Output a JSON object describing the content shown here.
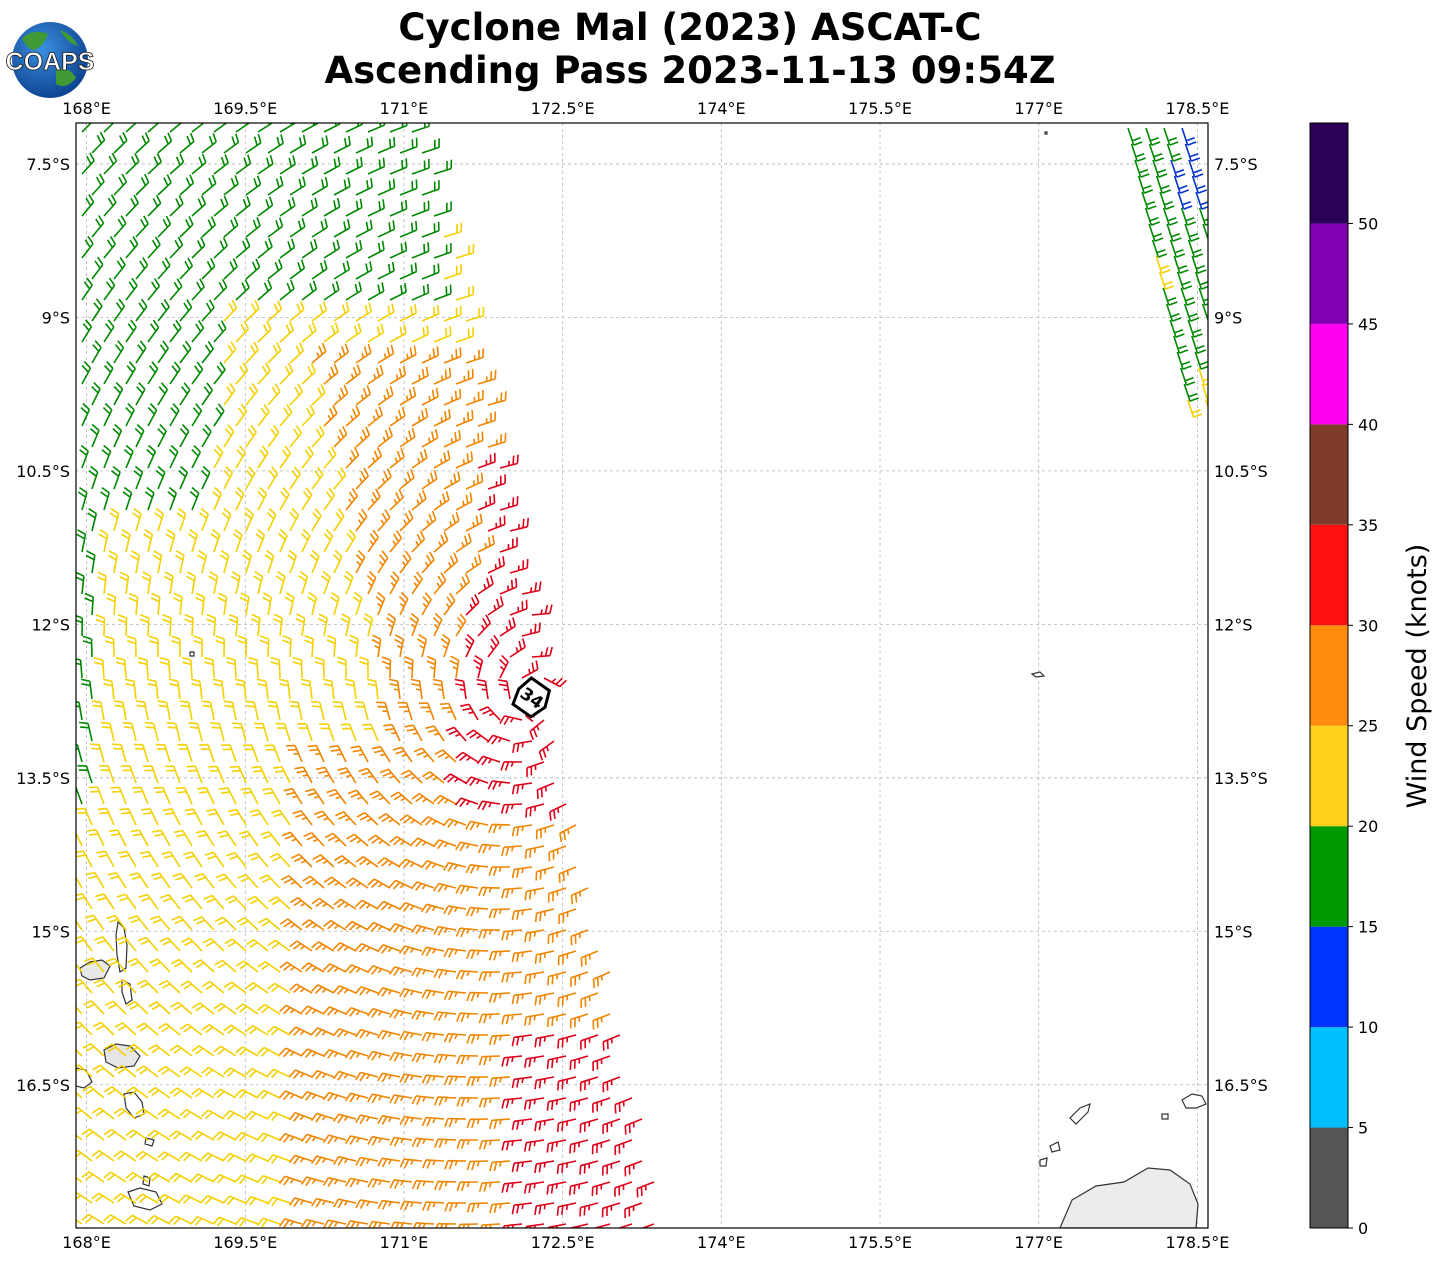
{
  "logo": {
    "text": "COAPS"
  },
  "title": {
    "line1": "Cyclone Mal (2023) ASCAT-C",
    "line2": "Ascending Pass 2023-11-13 09:54Z"
  },
  "map": {
    "lon_range": [
      167.9,
      178.6
    ],
    "lat_range": [
      -7.1,
      -17.9
    ],
    "lon_ticks": [
      {
        "value": 168.0,
        "label": "168°E"
      },
      {
        "value": 169.5,
        "label": "169.5°E"
      },
      {
        "value": 171.0,
        "label": "171°E"
      },
      {
        "value": 172.5,
        "label": "172.5°E"
      },
      {
        "value": 174.0,
        "label": "174°E"
      },
      {
        "value": 175.5,
        "label": "175.5°E"
      },
      {
        "value": 177.0,
        "label": "177°E"
      },
      {
        "value": 178.5,
        "label": "178.5°E"
      }
    ],
    "lat_ticks": [
      {
        "value": -7.5,
        "label": "7.5°S"
      },
      {
        "value": -9.0,
        "label": "9°S"
      },
      {
        "value": -10.5,
        "label": "10.5°S"
      },
      {
        "value": -12.0,
        "label": "12°S"
      },
      {
        "value": -13.5,
        "label": "13.5°S"
      },
      {
        "value": -15.0,
        "label": "15°S"
      },
      {
        "value": -16.5,
        "label": "16.5°S"
      }
    ],
    "gridlines": true,
    "storm_marker": {
      "label": "34",
      "lon": 172.15,
      "lat": -12.65
    }
  },
  "colorbar": {
    "label": "Wind Speed (knots)",
    "bins": [
      {
        "min": 0,
        "max": 5,
        "color": "#555555"
      },
      {
        "min": 5,
        "max": 10,
        "color": "#00bfff"
      },
      {
        "min": 10,
        "max": 15,
        "color": "#0033ff"
      },
      {
        "min": 15,
        "max": 20,
        "color": "#009900"
      },
      {
        "min": 20,
        "max": 25,
        "color": "#ffd11a"
      },
      {
        "min": 25,
        "max": 30,
        "color": "#ff8c0d"
      },
      {
        "min": 30,
        "max": 35,
        "color": "#ff1111"
      },
      {
        "min": 35,
        "max": 40,
        "color": "#803c2a"
      },
      {
        "min": 40,
        "max": 45,
        "color": "#ff00ee"
      },
      {
        "min": 45,
        "max": 50,
        "color": "#8000b3"
      },
      {
        "min": 50,
        "max": 55,
        "color": "#2b0057"
      }
    ],
    "ticks": [
      "0",
      "5",
      "10",
      "15",
      "20",
      "25",
      "30",
      "35",
      "40",
      "45",
      "50"
    ]
  },
  "barb_colors": {
    "low": "#0033cc",
    "green": "#008800",
    "yellow": "#f5d000",
    "orange": "#f08500",
    "red": "#dd0018"
  }
}
